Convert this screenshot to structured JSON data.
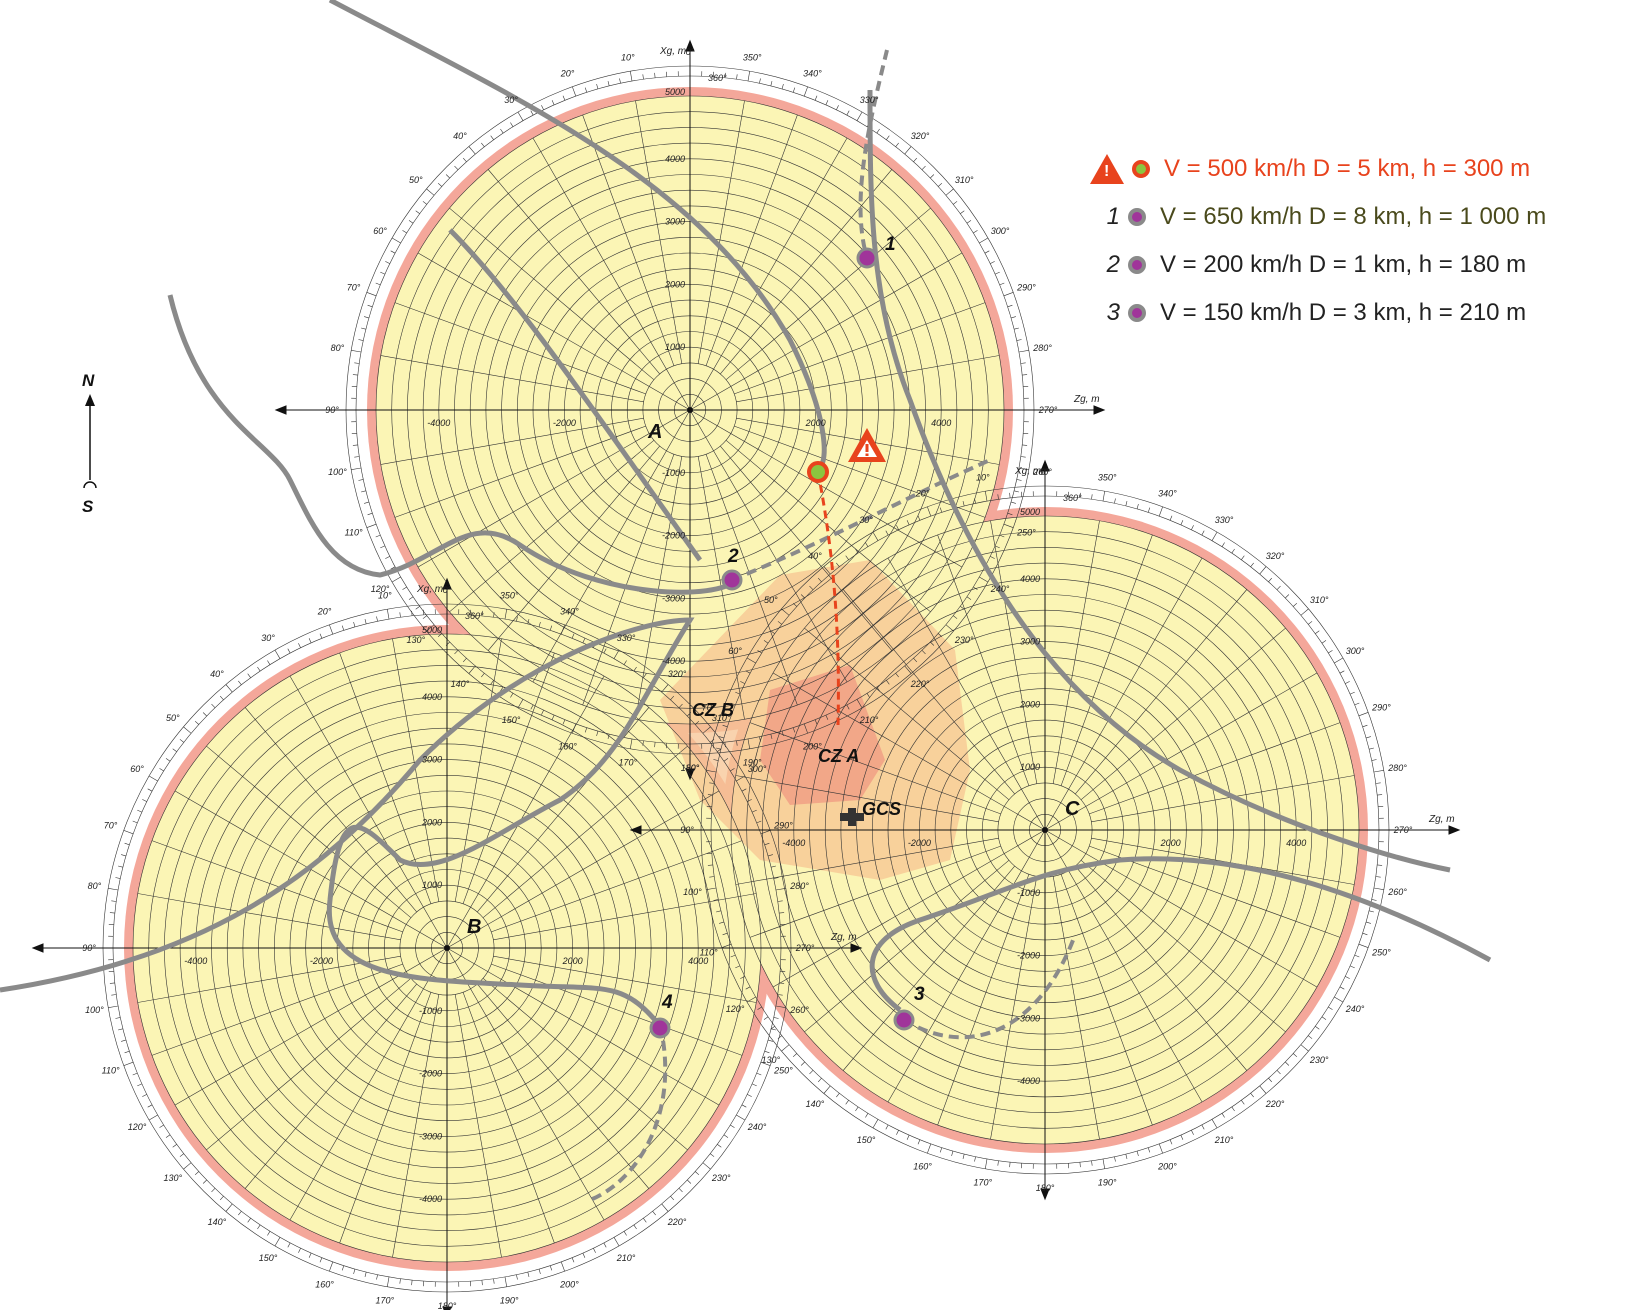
{
  "stations": [
    {
      "id": "A",
      "label": "A",
      "x": 0,
      "y": 0
    },
    {
      "id": "B",
      "label": "B",
      "x": -3800,
      "y": -8300
    },
    {
      "id": "C",
      "label": "C",
      "x": 5300,
      "y": -6500
    }
  ],
  "grid": {
    "radius_m": 5000,
    "axis_x_label": "Xg, m",
    "axis_z_label": "Zg, m",
    "tick_values": [
      "-4000",
      "-3000",
      "-2000",
      "-1000",
      "1000",
      "2000",
      "3000",
      "4000",
      "5000"
    ],
    "degree_labels": [
      "0°",
      "10°",
      "20°",
      "30°",
      "40°",
      "50°",
      "60°",
      "70°",
      "80°",
      "90°",
      "100°",
      "110°",
      "120°",
      "130°",
      "140°",
      "150°",
      "160°",
      "170°",
      "180°",
      "190°",
      "200°",
      "210°",
      "220°",
      "230°",
      "240°",
      "250°",
      "260°",
      "270°",
      "280°",
      "290°",
      "300°",
      "310°",
      "320°",
      "330°",
      "340°",
      "350°",
      "360°"
    ]
  },
  "zones": [
    {
      "id": "cz-b",
      "label": "CZ B"
    },
    {
      "id": "cz-a",
      "label": "CZ A"
    }
  ],
  "gcs": {
    "label": "GCS"
  },
  "targets": [
    {
      "id": "1",
      "label": "1"
    },
    {
      "id": "2",
      "label": "2"
    },
    {
      "id": "3",
      "label": "3"
    },
    {
      "id": "4",
      "label": "4"
    }
  ],
  "compass": {
    "north": "N",
    "south": "S"
  },
  "legend": [
    {
      "num": "",
      "icon": "warning",
      "dot_fill": "#8bc53f",
      "dot_stroke": "#e8431d",
      "text_color": "#e8431d",
      "text": "V = 500 km/h  D = 5 km, h = 300 m"
    },
    {
      "num": "1",
      "icon": "dot",
      "dot_fill": "#a0359a",
      "dot_stroke": "#8a8a8a",
      "text_color": "#4a4a1c",
      "text": "V = 650 km/h  D = 8 km, h = 1 000 m"
    },
    {
      "num": "2",
      "icon": "dot",
      "dot_fill": "#a0359a",
      "dot_stroke": "#8a8a8a",
      "text_color": "#222222",
      "text": "V = 200 km/h  D = 1 km, h = 180 m"
    },
    {
      "num": "3",
      "icon": "dot",
      "dot_fill": "#a0359a",
      "dot_stroke": "#8a8a8a",
      "text_color": "#222222",
      "text": "V = 150 km/h  D = 3 km, h = 210 m"
    }
  ],
  "colors": {
    "coverage_fill": "#fbf5b5",
    "coverage_band": "#f4a79a",
    "control_zone_b": "#f7c493",
    "control_zone_a": "#f09c83",
    "track": "#8a8a8a",
    "grid_line": "#333333",
    "alert": "#e8431d"
  }
}
